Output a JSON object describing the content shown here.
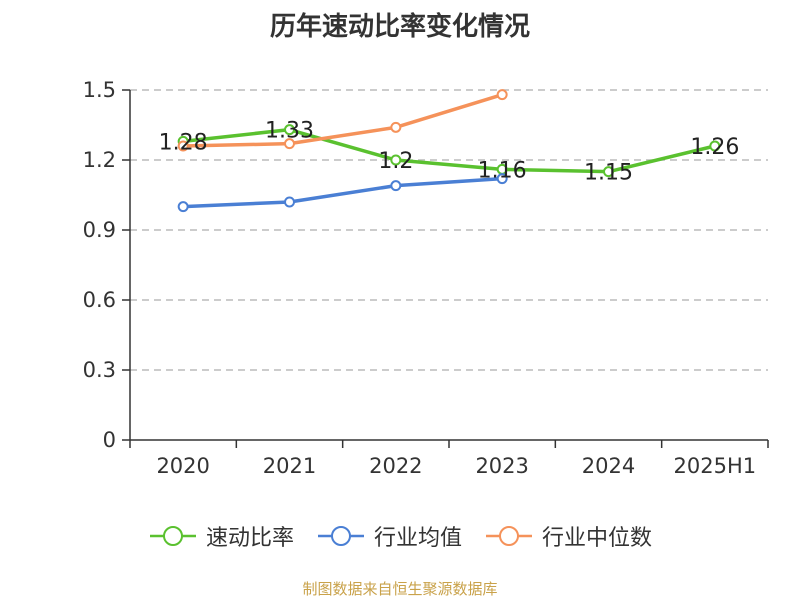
{
  "title": "历年速动比率变化情况",
  "source": "制图数据来自恒生聚源数据库",
  "colors": {
    "source_text": "#c9a24a",
    "grid": "#bbbbbb",
    "axis": "#333333"
  },
  "chart_data": {
    "type": "line",
    "title": "历年速动比率变化情况",
    "categories": [
      "2020",
      "2021",
      "2022",
      "2023",
      "2024",
      "2025H1"
    ],
    "ylim": [
      0,
      1.5
    ],
    "yticks": [
      "0",
      "0.3",
      "0.6",
      "0.9",
      "1.2",
      "1.5"
    ],
    "grid": true,
    "legend_position": "bottom",
    "series": [
      {
        "name": "速动比率",
        "color": "#5ac12f",
        "values": [
          1.28,
          1.33,
          1.2,
          1.16,
          1.15,
          1.26
        ],
        "labels": [
          "1.28",
          "1.33",
          "1.2",
          "1.16",
          "1.15",
          "1.26"
        ]
      },
      {
        "name": "行业均值",
        "color": "#4a7fd4",
        "values": [
          1.0,
          1.02,
          1.09,
          1.12,
          null,
          null
        ]
      },
      {
        "name": "行业中位数",
        "color": "#f5925a",
        "values": [
          1.26,
          1.27,
          1.34,
          1.48,
          null,
          null
        ]
      }
    ]
  }
}
